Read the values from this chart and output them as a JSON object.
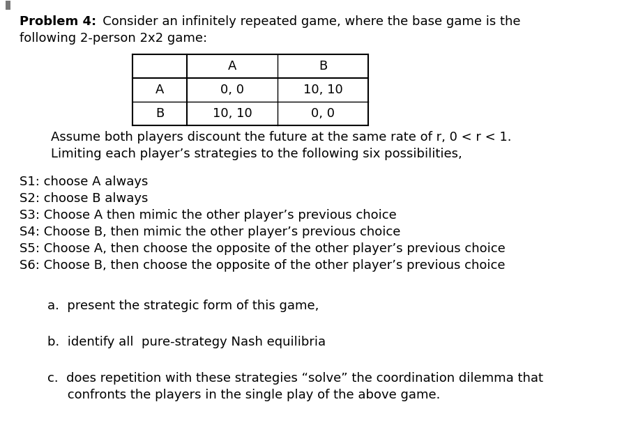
{
  "background_color": "#ffffff",
  "fig_width": 8.92,
  "fig_height": 6.33,
  "dpi": 100,
  "font_family": "DejaVu Sans",
  "font_size": 13,
  "table": {
    "col_headers": [
      "A",
      "B"
    ],
    "rows": [
      [
        "A",
        "0, 0",
        "10, 10"
      ],
      [
        "B",
        "10, 10",
        "0, 0"
      ]
    ]
  },
  "strategies": [
    "S1: choose A always",
    "S2: choose B always",
    "S3: Choose A then mimic the other player’s previous choice",
    "S4: Choose B, then mimic the other player’s previous choice",
    "S5: Choose A, then choose the opposite of the other player’s previous choice",
    "S6: Choose B, then choose the opposite of the other player’s previous choice"
  ],
  "question_a": "a.  present the strategic form of this game,",
  "question_b": "b.  identify all  pure-strategy Nash equilibria",
  "question_c1": "c.  does repetition with these strategies “solve” the coordination dilemma that",
  "question_c2": "     confronts the players in the single play of the above game."
}
